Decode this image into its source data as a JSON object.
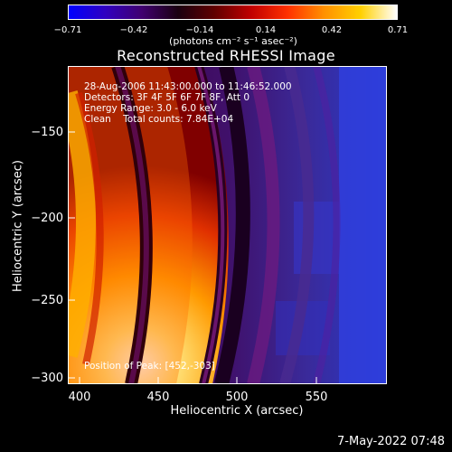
{
  "colorbar": {
    "ticks": [
      "−0.71",
      "−0.42",
      "−0.14",
      "0.14",
      "0.42",
      "0.71"
    ],
    "unit_label": "(photons cm⁻² s⁻¹ asec⁻²)",
    "gradient": [
      "#0000ff",
      "#3000c0",
      "#400070",
      "#1a0010",
      "#600000",
      "#c00000",
      "#ff3000",
      "#ff9000",
      "#ffd000",
      "#ffffff"
    ]
  },
  "chart_data": {
    "type": "heatmap",
    "title": "Reconstructed RHESSI Image",
    "xlabel": "Heliocentric X (arcsec)",
    "ylabel": "Heliocentric Y (arcsec)",
    "xlim": [
      390,
      592
    ],
    "ylim": [
      -302,
      -102
    ],
    "xticks": [
      "400",
      "450",
      "500",
      "550"
    ],
    "yticks": [
      "−150",
      "−200",
      "−250",
      "−300"
    ],
    "colorbar_range": [
      -0.71,
      0.71
    ],
    "annotations": [
      "28-Aug-2006 11:43:00.000 to 11:46:52.000",
      "Detectors: 3F 4F 5F 6F 7F 8F, Att 0",
      "Energy Range: 3.0 - 6.0 keV",
      "Clean    Total counts: 7.84E+04"
    ],
    "peak_label": "Position of Peak: [452,-303]"
  },
  "footer": {
    "date": "7-May-2022 07:48"
  }
}
